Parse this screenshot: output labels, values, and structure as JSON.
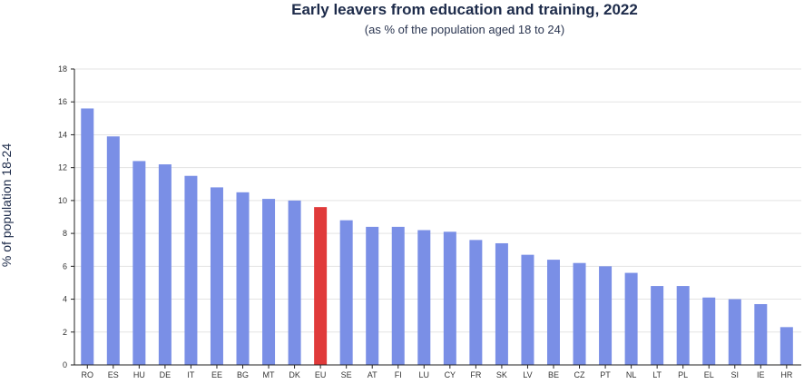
{
  "chart_data": {
    "type": "bar",
    "title": "Early leavers from education and training, 2022",
    "subtitle": "(as % of the population aged 18 to 24)",
    "ylabel": "% of population 18-24",
    "xlabel": "",
    "ylim": [
      0,
      18
    ],
    "yticks": [
      0,
      2,
      4,
      6,
      8,
      10,
      12,
      14,
      16,
      18
    ],
    "grid": true,
    "legend": "none",
    "categories": [
      "RO",
      "ES",
      "HU",
      "DE",
      "IT",
      "EE",
      "BG",
      "MT",
      "DK",
      "EU",
      "SE",
      "AT",
      "FI",
      "LU",
      "CY",
      "FR",
      "SK",
      "LV",
      "BE",
      "CZ",
      "PT",
      "NL",
      "LT",
      "PL",
      "EL",
      "SI",
      "IE",
      "HR"
    ],
    "values": [
      15.6,
      13.9,
      12.4,
      12.2,
      11.5,
      10.8,
      10.5,
      10.1,
      10.0,
      9.6,
      8.8,
      8.4,
      8.4,
      8.2,
      8.1,
      7.6,
      7.4,
      6.7,
      6.4,
      6.2,
      6.0,
      5.6,
      4.8,
      4.8,
      4.1,
      4.0,
      3.7,
      2.3
    ],
    "highlight_category": "EU",
    "colors": {
      "bar": "#7a8fe6",
      "highlight": "#e03a3a",
      "grid": "#e3e3e3",
      "axis": "#222222"
    }
  }
}
